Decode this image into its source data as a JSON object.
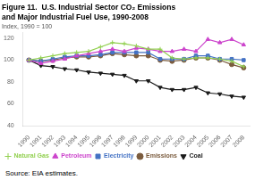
{
  "chart_data": {
    "type": "line",
    "title": [
      "Figure 11.  U.S. Industrial Sector CO₂ Emissions",
      "and Major Industrial Fuel Use, 1990-2008"
    ],
    "subtitle": "Index, 1990 = 100",
    "source": "Source: EIA estimates.",
    "x": [
      1990,
      1991,
      1992,
      1993,
      1994,
      1995,
      1996,
      1997,
      1998,
      1999,
      2000,
      2001,
      2002,
      2003,
      2004,
      2005,
      2006,
      2007,
      2008
    ],
    "series": [
      {
        "name": "Natural Gas",
        "color": "#92d050",
        "marker": "plus",
        "values": [
          100,
          102,
          104,
          106,
          107,
          108,
          112,
          116,
          115,
          113,
          110,
          110,
          102,
          101,
          102,
          102,
          101,
          99,
          94
        ]
      },
      {
        "name": "Petroleum",
        "color": "#cc44cc",
        "marker": "triangle",
        "values": [
          100,
          97,
          99,
          101,
          104,
          106,
          108,
          110,
          108,
          111,
          110,
          108,
          108,
          110,
          108,
          119,
          116,
          119,
          114
        ]
      },
      {
        "name": "Electricity",
        "color": "#4472c4",
        "marker": "square",
        "values": [
          100,
          99,
          101,
          103,
          104,
          104,
          105,
          107,
          107,
          107,
          107,
          101,
          101,
          101,
          104,
          104,
          101,
          101,
          100
        ]
      },
      {
        "name": "Emissions",
        "color": "#7b5c3e",
        "marker": "circle",
        "values": [
          100,
          99,
          100,
          102,
          103,
          103,
          104,
          106,
          105,
          104,
          104,
          100,
          99,
          100,
          102,
          102,
          100,
          96,
          93
        ]
      },
      {
        "name": "Coal",
        "color": "#1a1a1a",
        "marker": "triangle_down",
        "values": [
          100,
          95,
          94,
          92,
          91,
          89,
          88,
          87,
          86,
          81,
          81,
          75,
          73,
          73,
          75,
          70,
          69,
          67,
          66
        ]
      }
    ],
    "xlim": [
      1989.5,
      2008.5
    ],
    "xticks": [
      1990,
      1991,
      1992,
      1993,
      1994,
      1995,
      1996,
      1997,
      1998,
      1999,
      2000,
      2001,
      2002,
      2003,
      2004,
      2005,
      2006,
      2007,
      2008
    ],
    "ylim": [
      40,
      125
    ],
    "yticks": [
      40,
      60,
      80,
      100,
      120
    ],
    "grid": false,
    "legend": "lower left"
  }
}
